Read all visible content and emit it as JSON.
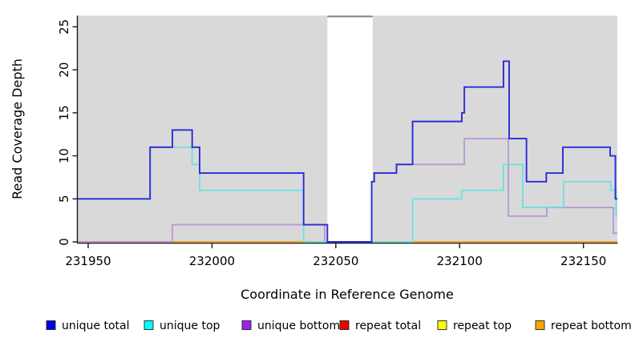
{
  "chart_data": {
    "type": "line",
    "subtype": "step-coverage",
    "title": "",
    "xlabel": "Coordinate in Reference Genome",
    "ylabel": "Read Coverage Depth",
    "xlim": [
      231945.8,
      232163.7
    ],
    "ylim": [
      0,
      26.3
    ],
    "x_ticks": [
      231950,
      232000,
      232050,
      232100,
      232150
    ],
    "y_ticks": [
      0,
      5,
      10,
      15,
      20,
      25
    ],
    "grid": false,
    "plot_bg": "#D9D9D9",
    "gap_region": {
      "x_start": 232046.6,
      "x_end": 232064.9,
      "fill": "#FFFFFF",
      "top_line_color": "#808080"
    },
    "axis_color": "#1a1a1a",
    "series": [
      {
        "name": "repeat total",
        "color": "#EE0000",
        "opacity": 1,
        "points": [
          [
            231945.8,
            0
          ],
          [
            232163.7,
            0
          ]
        ]
      },
      {
        "name": "repeat top",
        "color": "#FFFF00",
        "opacity": 1,
        "points": [
          [
            231945.8,
            0
          ],
          [
            232163.7,
            0
          ]
        ]
      },
      {
        "name": "repeat bottom",
        "color": "#FFA520",
        "opacity": 1,
        "points": [
          [
            231945.8,
            0
          ],
          [
            232163.7,
            0
          ]
        ]
      },
      {
        "name": "unique bottom",
        "color": "#B48CDB",
        "opacity": 0.85,
        "points": [
          [
            231945.8,
            0
          ],
          [
            231984,
            2
          ],
          [
            232045.5,
            0
          ],
          [
            232064.5,
            7
          ],
          [
            232065.5,
            8
          ],
          [
            232074.5,
            9
          ],
          [
            232101.9,
            12
          ],
          [
            232119.7,
            3
          ],
          [
            232135.2,
            4
          ],
          [
            232162.1,
            1
          ],
          [
            232163.7,
            1
          ]
        ]
      },
      {
        "name": "unique top",
        "color": "#5FE0E4",
        "opacity": 0.85,
        "points": [
          [
            231945.8,
            5
          ],
          [
            231975,
            11
          ],
          [
            231992,
            9
          ],
          [
            231995,
            6
          ],
          [
            232037,
            0
          ],
          [
            232081,
            5
          ],
          [
            232100.9,
            6
          ],
          [
            232117.7,
            9
          ],
          [
            232125.5,
            4
          ],
          [
            232142,
            7
          ],
          [
            232161,
            6
          ],
          [
            232163.2,
            3
          ],
          [
            232163.7,
            3
          ]
        ]
      },
      {
        "name": "unique total",
        "color": "#2B2BD8",
        "opacity": 1,
        "points": [
          [
            231945.8,
            5
          ],
          [
            231975,
            11
          ],
          [
            231984,
            13
          ],
          [
            231992,
            11
          ],
          [
            231995,
            8
          ],
          [
            232037,
            2
          ],
          [
            232046.6,
            0
          ],
          [
            232064.5,
            7
          ],
          [
            232065.5,
            8
          ],
          [
            232074.5,
            9
          ],
          [
            232081,
            14
          ],
          [
            232100.9,
            15
          ],
          [
            232101.9,
            18
          ],
          [
            232117.7,
            21
          ],
          [
            232120,
            12
          ],
          [
            232127,
            7
          ],
          [
            232135,
            8
          ],
          [
            232141.7,
            11
          ],
          [
            232160.8,
            10
          ],
          [
            232162.9,
            5
          ],
          [
            232163.7,
            5
          ]
        ]
      }
    ]
  },
  "legend": {
    "items": [
      {
        "label": "unique total",
        "color": "#0000EE"
      },
      {
        "label": "unique top",
        "color": "#00FFFF"
      },
      {
        "label": "unique bottom",
        "color": "#A020F0"
      },
      {
        "label": "repeat total",
        "color": "#EE0000"
      },
      {
        "label": "repeat top",
        "color": "#FFFF00"
      },
      {
        "label": "repeat bottom",
        "color": "#FFA500"
      }
    ]
  }
}
